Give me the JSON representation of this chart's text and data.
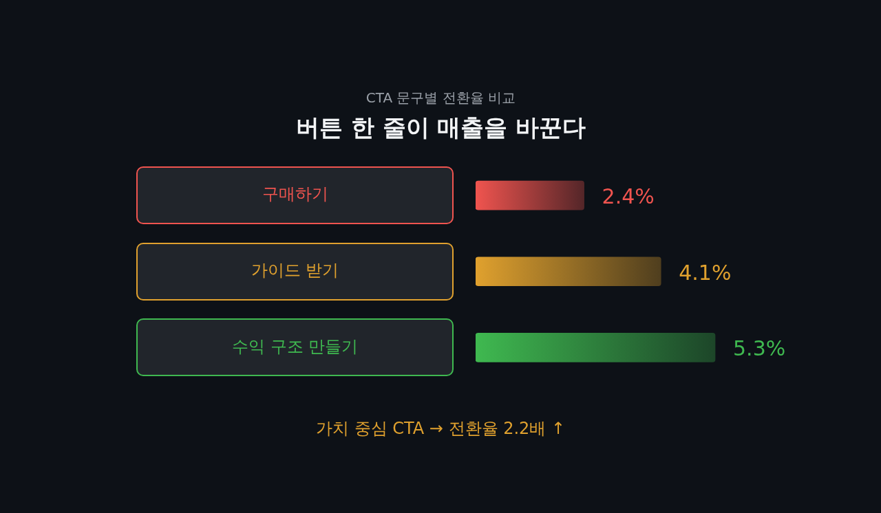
{
  "chart_data": {
    "type": "bar",
    "orientation": "horizontal",
    "title": "버튼 한 줄이 매출을 바꾼다",
    "subtitle": "CTA 문구별 전환율 비교",
    "categories": [
      "구매하기",
      "가이드 받기",
      "수익 구조 만들기"
    ],
    "values": [
      2.4,
      4.1,
      5.3
    ],
    "colors": [
      "#f0544f",
      "#e0a12e",
      "#3fb950"
    ],
    "value_labels": [
      "2.4%",
      "4.1%",
      "5.3%"
    ],
    "annotations": [
      "가치 중심 CTA → 전환율 2.2배 ↑"
    ],
    "legend": false
  }
}
